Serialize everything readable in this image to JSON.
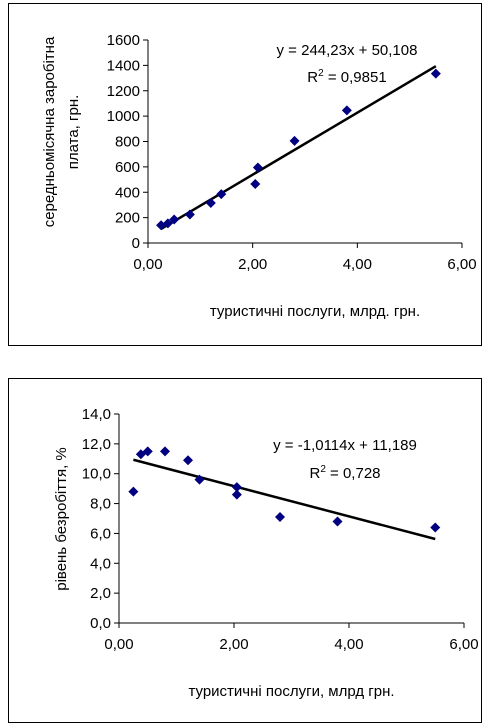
{
  "chart_data": [
    {
      "type": "scatter",
      "xlabel": "туристичні послуги, млрд. грн.",
      "ylabel_lines": [
        "середньомісячна заробітна",
        "плата, грн."
      ],
      "xlim": [
        0,
        6
      ],
      "ylim": [
        0,
        1600
      ],
      "xticks": [
        0,
        2,
        4,
        6
      ],
      "xtick_labels": [
        "0,00",
        "2,00",
        "4,00",
        "6,00"
      ],
      "yticks": [
        0,
        200,
        400,
        600,
        800,
        1000,
        1200,
        1400,
        1600
      ],
      "ytick_labels": [
        "0",
        "200",
        "400",
        "600",
        "800",
        "1000",
        "1200",
        "1400",
        "1600"
      ],
      "points": [
        {
          "x": 0.25,
          "y": 140
        },
        {
          "x": 0.38,
          "y": 155
        },
        {
          "x": 0.5,
          "y": 185
        },
        {
          "x": 0.8,
          "y": 225
        },
        {
          "x": 1.2,
          "y": 315
        },
        {
          "x": 1.4,
          "y": 385
        },
        {
          "x": 2.05,
          "y": 465
        },
        {
          "x": 2.1,
          "y": 595
        },
        {
          "x": 2.8,
          "y": 805
        },
        {
          "x": 3.8,
          "y": 1045
        },
        {
          "x": 5.5,
          "y": 1335
        }
      ],
      "trendline": {
        "slope": 244.23,
        "intercept": 50.108,
        "x_range": [
          0.25,
          5.5
        ]
      },
      "equation": "y = 244,23x + 50,108",
      "r2_prefix": "R",
      "r2_sup": "2",
      "r2_value": " = 0,9851",
      "marker_color": "#000080",
      "line_color": "#000000",
      "grid": false,
      "legend": "none"
    },
    {
      "type": "scatter",
      "xlabel": "туристичні послуги, млрд грн.",
      "ylabel_lines": [
        "рівень безробіття, %"
      ],
      "xlim": [
        0,
        6
      ],
      "ylim": [
        0,
        14
      ],
      "xticks": [
        0,
        2,
        4,
        6
      ],
      "xtick_labels": [
        "0,00",
        "2,00",
        "4,00",
        "6,00"
      ],
      "yticks": [
        0,
        2,
        4,
        6,
        8,
        10,
        12,
        14
      ],
      "ytick_labels": [
        "0,0",
        "2,0",
        "4,0",
        "6,0",
        "8,0",
        "10,0",
        "12,0",
        "14,0"
      ],
      "points": [
        {
          "x": 0.25,
          "y": 8.8
        },
        {
          "x": 0.38,
          "y": 11.3
        },
        {
          "x": 0.5,
          "y": 11.5
        },
        {
          "x": 0.8,
          "y": 11.5
        },
        {
          "x": 1.2,
          "y": 10.9
        },
        {
          "x": 1.4,
          "y": 9.6
        },
        {
          "x": 2.05,
          "y": 9.1
        },
        {
          "x": 2.05,
          "y": 8.6
        },
        {
          "x": 2.8,
          "y": 7.1
        },
        {
          "x": 3.8,
          "y": 6.8
        },
        {
          "x": 5.5,
          "y": 6.4
        }
      ],
      "trendline": {
        "slope": -1.0114,
        "intercept": 11.189,
        "x_range": [
          0.25,
          5.5
        ]
      },
      "equation": "y = -1,0114x + 11,189",
      "r2_prefix": "R",
      "r2_sup": "2",
      "r2_value": " = 0,728",
      "marker_color": "#000080",
      "line_color": "#000000",
      "grid": false,
      "legend": "none"
    }
  ]
}
